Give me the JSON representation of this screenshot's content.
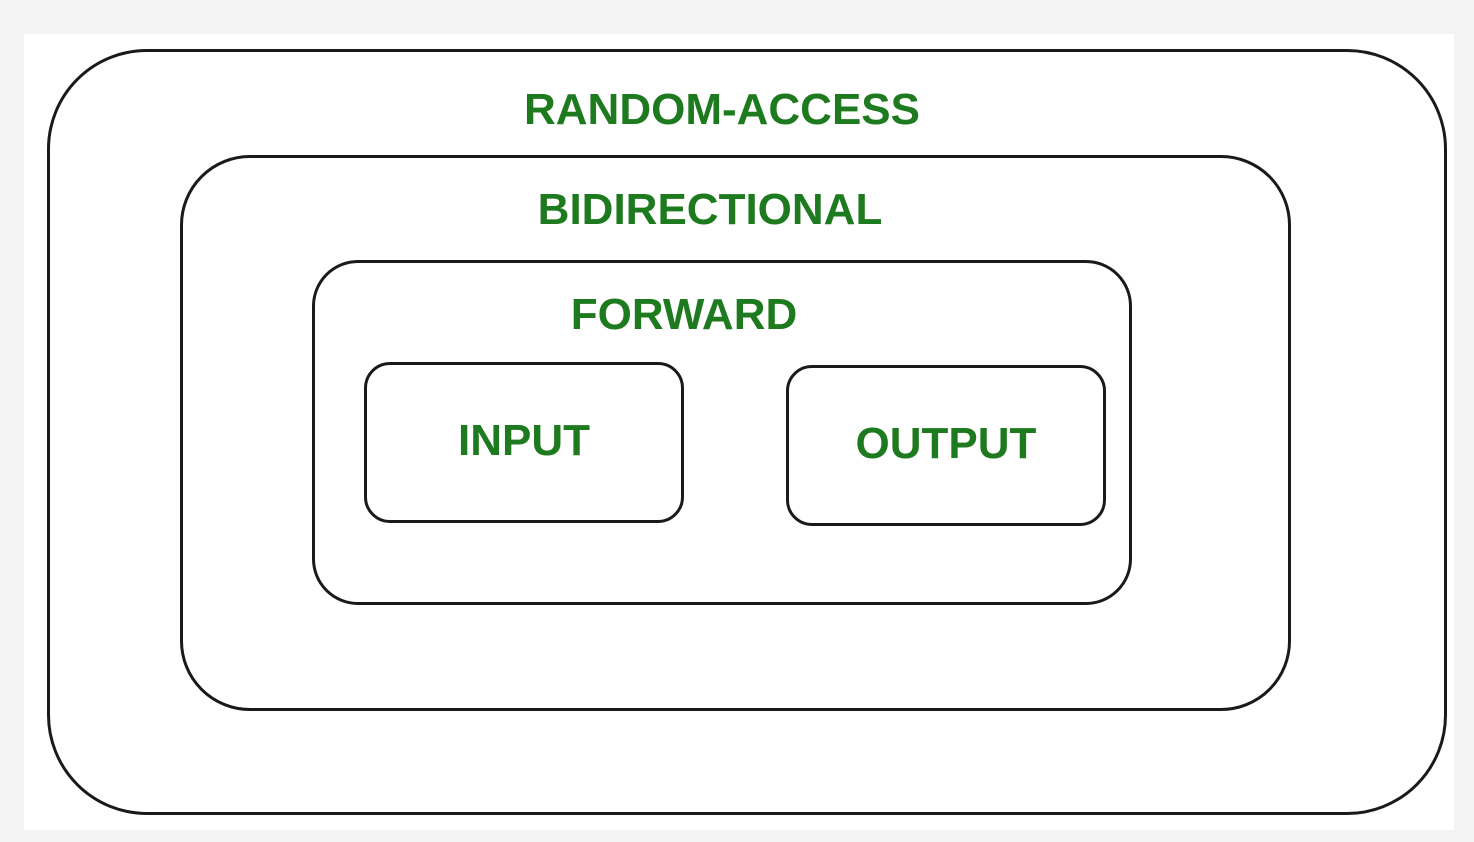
{
  "diagram": {
    "colors": {
      "label_text": "#1e7a1e",
      "border": "#1a1a1a",
      "background": "#ffffff",
      "page_background": "#f3f3f3"
    },
    "levels": {
      "random_access": "RANDOM-ACCESS",
      "bidirectional": "BIDIRECTIONAL",
      "forward": "FORWARD",
      "input": "INPUT",
      "output": "OUTPUT"
    }
  }
}
